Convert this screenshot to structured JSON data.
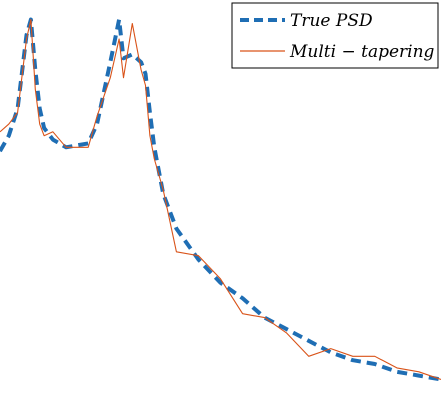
{
  "chart_data": {
    "type": "line",
    "title": "",
    "xlabel": "",
    "ylabel": "",
    "grid": false,
    "legend": {
      "position": "top-right",
      "entries": [
        "True PSD",
        "Multi − tapering"
      ]
    },
    "x": [
      0.0,
      0.02,
      0.04,
      0.06,
      0.07,
      0.08,
      0.09,
      0.1,
      0.12,
      0.15,
      0.2,
      0.22,
      0.25,
      0.27,
      0.28,
      0.3,
      0.32,
      0.33,
      0.34,
      0.35,
      0.37,
      0.4,
      0.45,
      0.5,
      0.55,
      0.6,
      0.65,
      0.7,
      0.75,
      0.8,
      0.85,
      0.9,
      0.95,
      1.0
    ],
    "xlim": [
      0,
      1
    ],
    "ylim": [
      0,
      1
    ],
    "series": [
      {
        "name": "True PSD",
        "color": "#1f6eb4",
        "style": "dashed",
        "values": [
          0.63,
          0.67,
          0.74,
          0.93,
          0.97,
          0.84,
          0.74,
          0.69,
          0.66,
          0.64,
          0.65,
          0.7,
          0.86,
          0.97,
          0.87,
          0.88,
          0.86,
          0.83,
          0.73,
          0.64,
          0.52,
          0.43,
          0.35,
          0.29,
          0.25,
          0.2,
          0.17,
          0.14,
          0.11,
          0.09,
          0.08,
          0.06,
          0.05,
          0.04
        ]
      },
      {
        "name": "Multi − tapering",
        "color": "#d95319",
        "style": "solid",
        "values": [
          0.68,
          0.7,
          0.73,
          0.92,
          0.97,
          0.79,
          0.7,
          0.67,
          0.68,
          0.64,
          0.64,
          0.72,
          0.82,
          0.92,
          0.82,
          0.96,
          0.84,
          0.8,
          0.67,
          0.61,
          0.53,
          0.37,
          0.36,
          0.3,
          0.21,
          0.2,
          0.16,
          0.1,
          0.12,
          0.1,
          0.1,
          0.07,
          0.06,
          0.04
        ]
      }
    ]
  }
}
